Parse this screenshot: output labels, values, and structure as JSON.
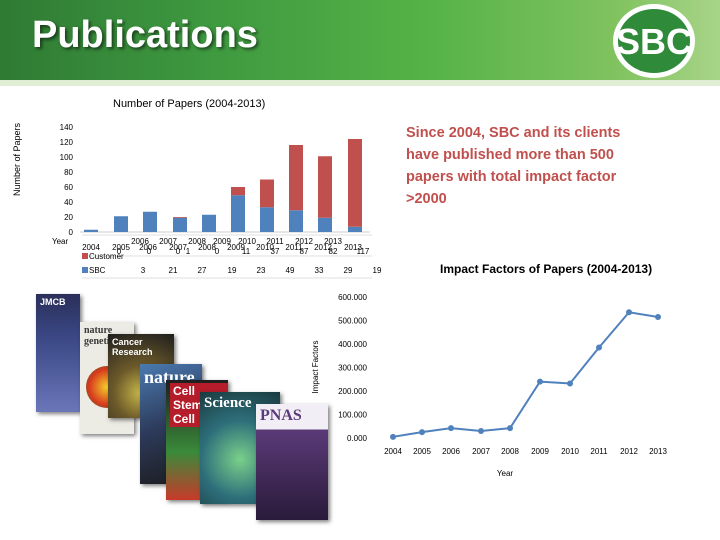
{
  "header": {
    "title": "Publications",
    "logo_text": "SBC",
    "colors": {
      "green_dark": "#2f7a34",
      "green_light": "#a8d488"
    }
  },
  "callout": {
    "text": "Since 2004, SBC and its clients have published more than 500 papers with total impact factor >2000"
  },
  "chart_data": [
    {
      "type": "bar",
      "title": "Number of Papers (2004-2013)",
      "ylabel": "Number of Papers",
      "xlabel": "Year",
      "ylim": [
        0,
        140
      ],
      "yticks": [
        "0",
        "20",
        "40",
        "60",
        "80",
        "100",
        "120",
        "140"
      ],
      "categories": [
        "2004",
        "2005",
        "2006",
        "2007",
        "2008",
        "2009",
        "2010",
        "2011",
        "2012",
        "2013"
      ],
      "stacked": true,
      "series": [
        {
          "name": "SBC",
          "color": "#4f81bd",
          "values": [
            3,
            21,
            27,
            19,
            23,
            49,
            33,
            29,
            19,
            7
          ]
        },
        {
          "name": "Customer",
          "color": "#c0504d",
          "values": [
            0,
            0,
            0,
            1,
            0,
            11,
            37,
            87,
            82,
            117
          ]
        }
      ],
      "data_table": {
        "header_years": [
          "2004",
          "2005",
          "2006",
          "2007",
          "2008",
          "2009",
          "2010",
          "2011",
          "2012",
          "2013"
        ],
        "customer_row": [
          "0",
          "0",
          "0",
          "1",
          "0",
          "11",
          "37",
          "87",
          "82",
          "117"
        ],
        "sbc_row": [
          "3",
          "21",
          "27",
          "19",
          "23",
          "49",
          "33",
          "29",
          "19",
          "7"
        ]
      }
    },
    {
      "type": "line",
      "title": "Impact Factors of Papers (2004-2013)",
      "ylabel": "Impact Factors",
      "xlabel": "Year",
      "ylim": [
        0,
        600
      ],
      "yticks": [
        "0.000",
        "100.000",
        "200.000",
        "300.000",
        "400.000",
        "500.000",
        "600.000"
      ],
      "x": [
        "2004",
        "2005",
        "2006",
        "2007",
        "2008",
        "2009",
        "2010",
        "2011",
        "2012",
        "2013"
      ],
      "series": [
        {
          "color": "#4f81bd",
          "values": [
            5,
            25,
            42,
            30,
            42,
            240,
            232,
            385,
            535,
            515
          ]
        }
      ]
    }
  ],
  "covers": [
    {
      "name": "jmcb",
      "label": "JMCB",
      "color": "#2a2f5a"
    },
    {
      "name": "nature-genetics",
      "label": "nature genetics",
      "color": "#e9e9e4"
    },
    {
      "name": "cancer-research",
      "label": "Cancer Research",
      "color": "#3a3a3a"
    },
    {
      "name": "nature",
      "label": "nature",
      "color": "#3a5a8a"
    },
    {
      "name": "cell-stem-cell",
      "label": "Cell Stem Cell",
      "color": "#b51d2a"
    },
    {
      "name": "science",
      "label": "Science",
      "color": "#2d6e7a"
    },
    {
      "name": "pnas",
      "label": "PNAS",
      "color": "#f0ecf4"
    }
  ]
}
